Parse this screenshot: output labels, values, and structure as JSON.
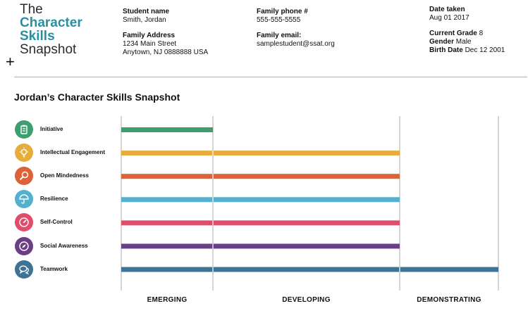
{
  "logo": {
    "line1": "The",
    "line2": "Character",
    "line3": "Skills",
    "line4": "Snapshot"
  },
  "cursor_icon": "crosshair-cursor-icon",
  "student": {
    "name_label": "Student name",
    "name_value": "Smith, Jordan",
    "address_label": "Family Address",
    "address_line1": "1234 Main Street",
    "address_line2": "Anytown, NJ 0888888 USA"
  },
  "family": {
    "phone_label": "Family phone #",
    "phone_value": "555-555-5555",
    "email_label": "Family email:",
    "email_value": "samplestudent@ssat.org"
  },
  "test": {
    "date_label": "Date taken",
    "date_value": "Aug 01 2017",
    "grade_label": "Current Grade",
    "grade_value": "8",
    "gender_label": "Gender",
    "gender_value": "Male",
    "birth_label": "Birth Date",
    "birth_value": "Dec 12 2001"
  },
  "chart_data": {
    "type": "bar",
    "orientation": "horizontal",
    "title": "Jordan’s Character Skills Snapshot",
    "levels": [
      "EMERGING",
      "DEVELOPING",
      "DEMONSTRATING"
    ],
    "xlim": [
      0,
      3
    ],
    "categories": [
      "Initiative",
      "Intellectual Engagement",
      "Open Mindedness",
      "Resilience",
      "Self-Control",
      "Social Awareness",
      "Teamwork"
    ],
    "values": [
      1,
      2,
      2,
      2,
      2,
      2,
      3
    ],
    "colors": [
      "#3f9e6e",
      "#e7ad3c",
      "#de6237",
      "#54b0cc",
      "#e04d6a",
      "#6a3f86",
      "#3f7396"
    ],
    "icons": [
      "clipboard-icon",
      "lightbulb-icon",
      "magnifier-icon",
      "umbrella-icon",
      "gauge-icon",
      "compass-icon",
      "chat-bubbles-icon"
    ]
  }
}
